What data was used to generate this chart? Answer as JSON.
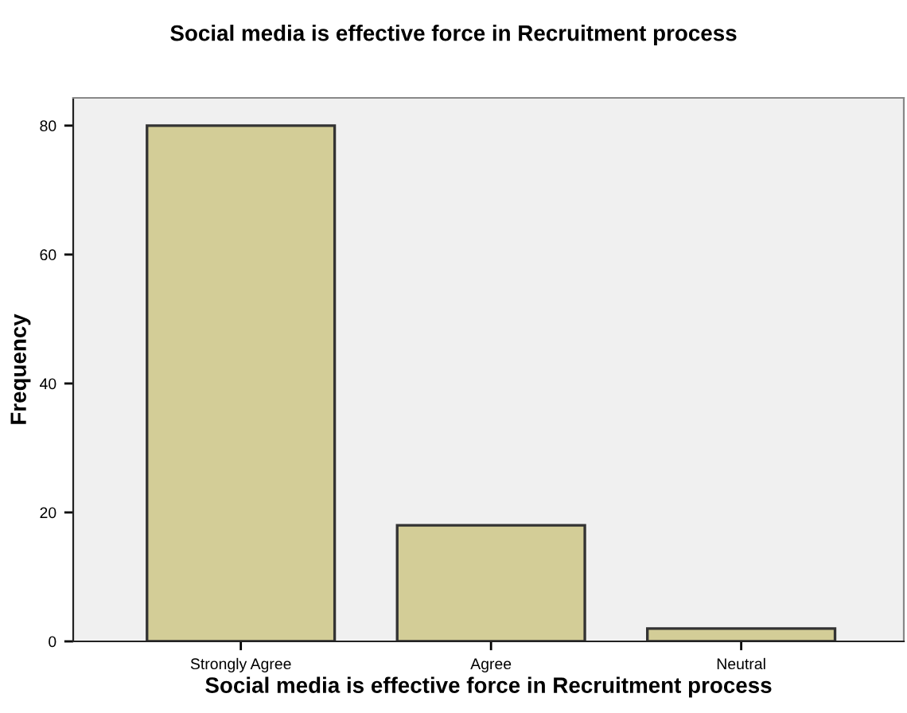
{
  "chart_data": {
    "type": "bar",
    "title": "Social media is effective force in Recruitment process",
    "xlabel": "Social media is effective force in Recruitment process",
    "ylabel": "Frequency",
    "categories": [
      "Strongly Agree",
      "Agree",
      "Neutral"
    ],
    "values": [
      80,
      18,
      2
    ],
    "color": "#d3cd97",
    "ylim": [
      0,
      84.3
    ],
    "yticks": [
      0,
      20,
      40,
      60,
      80
    ],
    "grid": false,
    "legend": false
  }
}
